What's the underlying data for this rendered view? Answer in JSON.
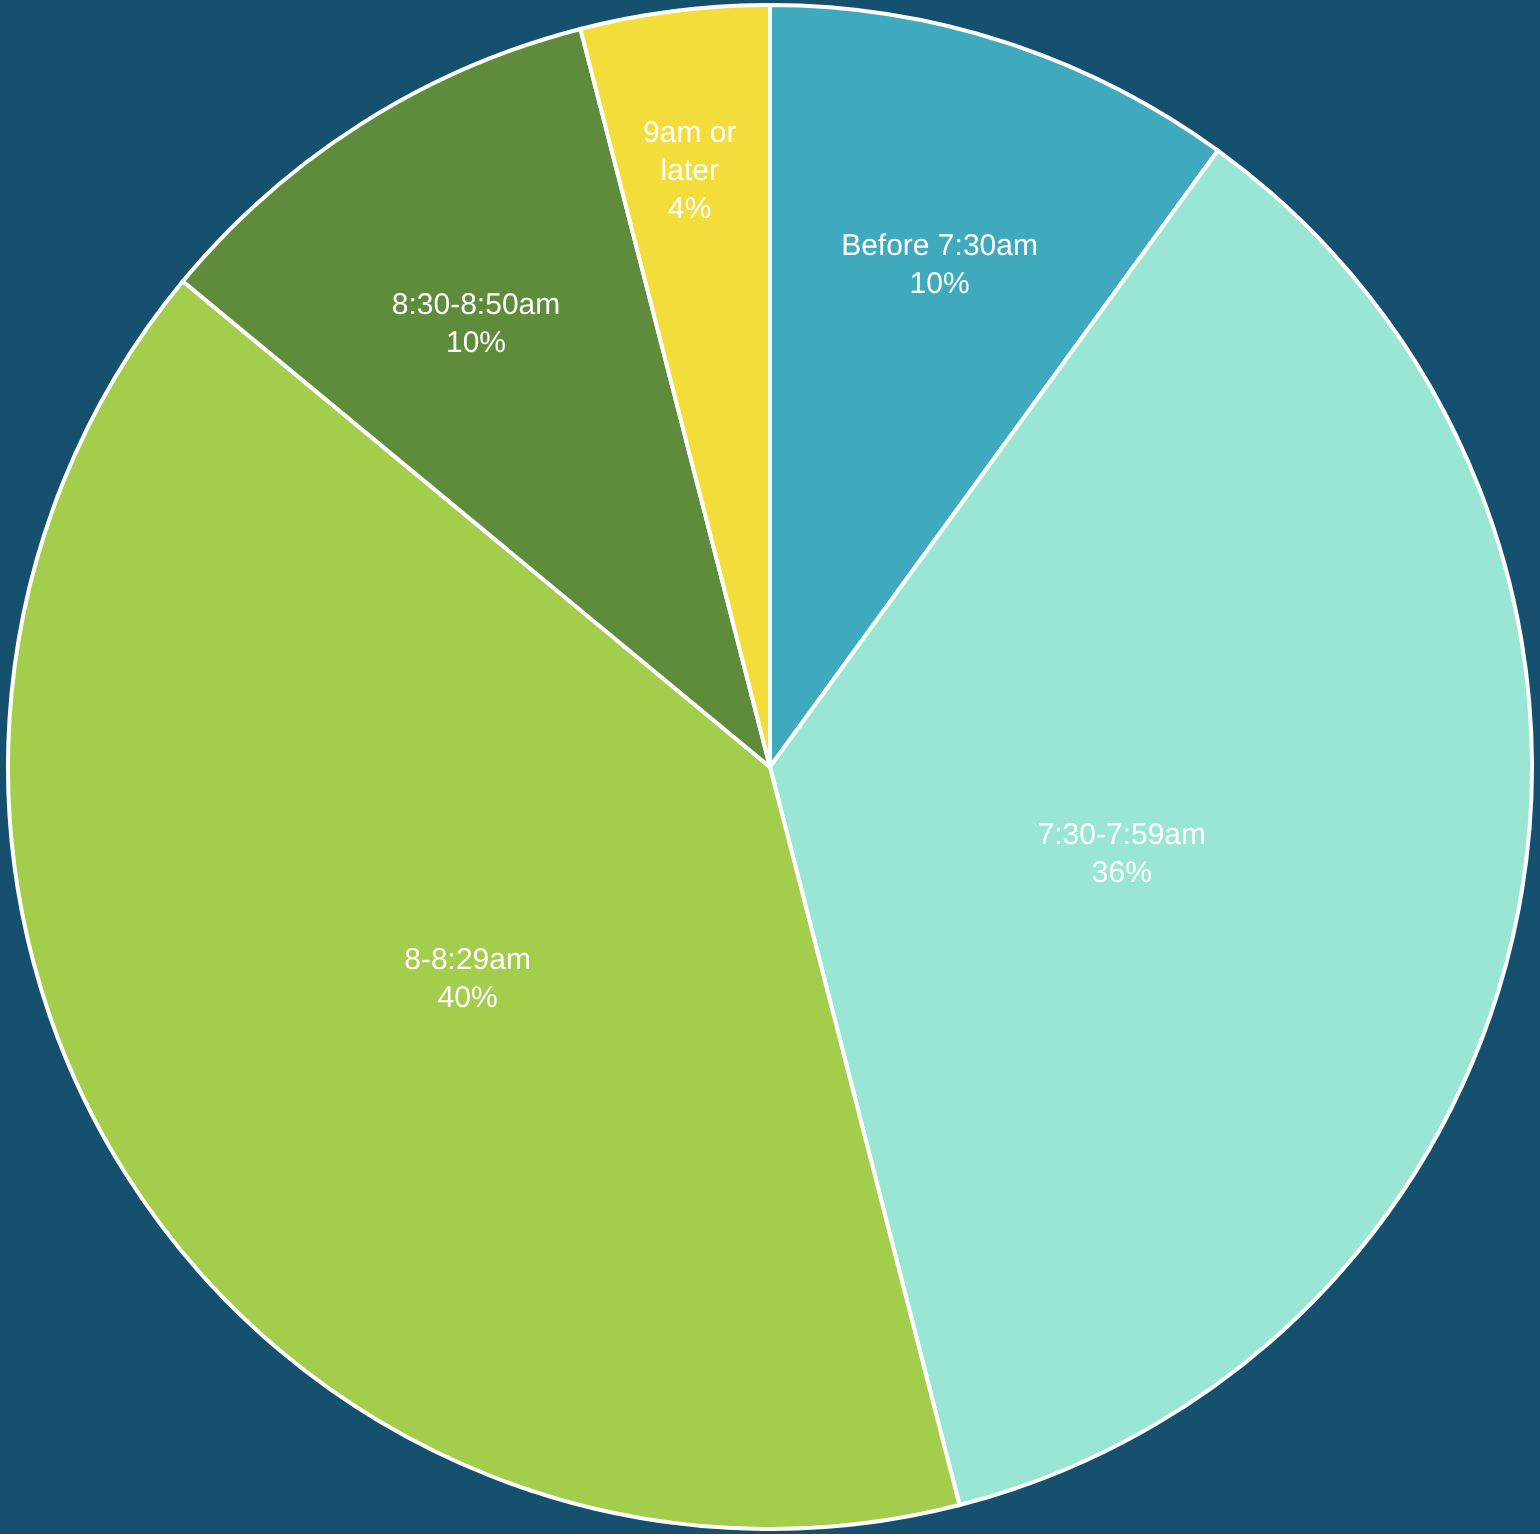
{
  "chart_data": {
    "type": "pie",
    "categories": [
      "Before 7:30am",
      "7:30-7:59am",
      "8-8:29am",
      "8:30-8:50am",
      "9am or later"
    ],
    "values": [
      10,
      36,
      40,
      10,
      4
    ],
    "value_labels": [
      "10%",
      "36%",
      "40%",
      "10%",
      "4%"
    ],
    "colors": [
      "#3fa9bd",
      "#9ae6d4",
      "#a4cd4b",
      "#5e8c3a",
      "#f3dd3a"
    ]
  }
}
